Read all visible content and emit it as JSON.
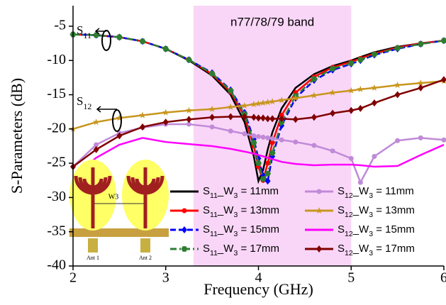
{
  "chart_data": {
    "type": "line",
    "xlabel": "Frequency (GHz)",
    "ylabel": "S-Parameters (dB)",
    "band": {
      "label": "n77/78/79 band",
      "from": 3.3,
      "to": 5.0,
      "color": "#f9d6f7"
    },
    "annotations": [
      "S11",
      "S12"
    ],
    "inset_labels": [
      "W3",
      "Ant 1",
      "Ant 2"
    ],
    "xlim": [
      2,
      6
    ],
    "xticks": [
      2,
      3,
      4,
      5,
      6
    ],
    "ylim": [
      -40,
      -2
    ],
    "yticks": [
      -5,
      -10,
      -15,
      -20,
      -25,
      -30,
      -35,
      -40
    ],
    "x": [
      2,
      2.25,
      2.5,
      2.75,
      3,
      3.25,
      3.5,
      3.7,
      3.85,
      3.95,
      4.0,
      4.05,
      4.1,
      4.15,
      4.25,
      4.4,
      4.6,
      4.8,
      5.0,
      5.1,
      5.25,
      5.5,
      5.75,
      6
    ],
    "series": [
      {
        "name": "S11_W3 = 11mm",
        "color": "#000000",
        "marker": "none",
        "dash": "solid",
        "values": [
          -6.2,
          -6.3,
          -6.6,
          -7.2,
          -8.3,
          -10,
          -12.2,
          -15,
          -19,
          -24,
          -27.6,
          -26,
          -23,
          -20.5,
          -17,
          -14,
          -12,
          -10.8,
          -10,
          -9.5,
          -8.8,
          -8,
          -7.5,
          -7.1
        ]
      },
      {
        "name": "S11_W3 = 13mm",
        "color": "#ff0000",
        "marker": "circle",
        "dash": "solid",
        "values": [
          -6.2,
          -6.3,
          -6.6,
          -7.2,
          -8.3,
          -9.9,
          -12,
          -14.6,
          -18.2,
          -22.5,
          -25.5,
          -27.5,
          -25,
          -22,
          -18,
          -14.7,
          -12.4,
          -11,
          -10.2,
          -9.7,
          -9,
          -8.1,
          -7.5,
          -7.1
        ]
      },
      {
        "name": "S11_W3 = 15mm",
        "color": "#0000ff",
        "marker": "diamond",
        "dash": "dash",
        "values": [
          -6.2,
          -6.3,
          -6.6,
          -7.2,
          -8.3,
          -9.9,
          -11.8,
          -14.3,
          -17.6,
          -21.5,
          -24.3,
          -26.8,
          -27.6,
          -24,
          -19.5,
          -15.5,
          -12.9,
          -11.4,
          -10.5,
          -10,
          -9.2,
          -8.3,
          -7.6,
          -7.1
        ]
      },
      {
        "name": "S11_W3 = 17mm",
        "color": "#2e7d32",
        "marker": "hexagon",
        "dash": "dashdot",
        "values": [
          -6.2,
          -6.3,
          -6.6,
          -7.2,
          -8.3,
          -9.9,
          -11.9,
          -14.4,
          -17.8,
          -22,
          -25,
          -27.3,
          -26.5,
          -23.5,
          -19,
          -15.2,
          -12.7,
          -11.2,
          -10.4,
          -9.9,
          -9.1,
          -8.2,
          -7.6,
          -7.1
        ]
      },
      {
        "name": "S12_W3 = 11mm",
        "color": "#c08ad8",
        "marker": "circle",
        "dash": "solid",
        "values": [
          -25.5,
          -22.3,
          -20.6,
          -19.8,
          -19.3,
          -19.3,
          -19.7,
          -20.3,
          -20.7,
          -21,
          -21.1,
          -21.2,
          -21.3,
          -21.4,
          -21.6,
          -21.9,
          -22.4,
          -23.2,
          -24.3,
          -27.8,
          -24,
          -21.7,
          -21.3,
          -21.6
        ]
      },
      {
        "name": "S12_W3 = 13mm",
        "color": "#c8961e",
        "marker": "star",
        "dash": "solid",
        "values": [
          -20,
          -19,
          -18.4,
          -18,
          -17.6,
          -17.3,
          -17.1,
          -16.8,
          -16.6,
          -16.4,
          -16.3,
          -16.2,
          -16.1,
          -16,
          -15.8,
          -15.5,
          -15.1,
          -14.7,
          -14.4,
          -14.2,
          -14,
          -13.6,
          -13.3,
          -13
        ]
      },
      {
        "name": "S12_W3 = 15mm",
        "color": "#ff00ff",
        "marker": "none",
        "dash": "solid",
        "values": [
          -27,
          -24.2,
          -22.3,
          -21.3,
          -21.9,
          -22.2,
          -22.5,
          -22.9,
          -23.3,
          -23.6,
          -23.8,
          -24,
          -24.2,
          -24.4,
          -24.8,
          -25.1,
          -25.3,
          -25.2,
          -25.2,
          -25.3,
          -25.5,
          -25.4,
          -23.8,
          -22.3
        ]
      },
      {
        "name": "S12_W3 = 17mm",
        "color": "#800000",
        "marker": "diamond",
        "dash": "solid",
        "values": [
          -25.5,
          -23,
          -21,
          -19.7,
          -19,
          -18.6,
          -18.3,
          -18.2,
          -18.2,
          -18.3,
          -18.4,
          -18.4,
          -18.5,
          -18.5,
          -18.5,
          -18.6,
          -18.3,
          -17.7,
          -17.3,
          -17,
          -16.2,
          -15,
          -14,
          -12.8
        ]
      }
    ]
  }
}
